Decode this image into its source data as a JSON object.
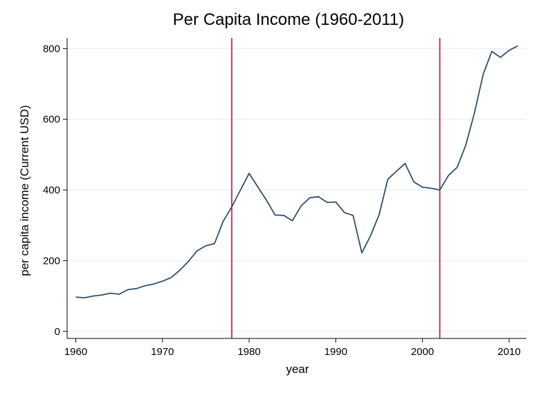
{
  "chart_data": {
    "type": "line",
    "title": "Per Capita Income (1960-2011)",
    "xlabel": "year",
    "ylabel": "per capita income (Current USD)",
    "xlim": [
      1959,
      2012
    ],
    "ylim": [
      -20,
      830
    ],
    "xticks": [
      1960,
      1970,
      1980,
      1990,
      2000,
      2010
    ],
    "yticks": [
      0,
      200,
      400,
      600,
      800
    ],
    "grid": true,
    "colors": {
      "line": "#2e4f6b",
      "vline": "#b2124a",
      "grid": "#e6ecef",
      "axis": "#000000"
    },
    "series": [
      {
        "x": [
          1960,
          1961,
          1962,
          1963,
          1964,
          1965,
          1966,
          1967,
          1968,
          1969,
          1970,
          1971,
          1972,
          1973,
          1974,
          1975,
          1976,
          1977,
          1978,
          1979,
          1980,
          1981,
          1982,
          1983,
          1984,
          1985,
          1986,
          1987,
          1988,
          1989,
          1990,
          1991,
          1992,
          1993,
          1994,
          1995,
          1996,
          1997,
          1998,
          1999,
          2000,
          2001,
          2002,
          2003,
          2004,
          2005,
          2006,
          2007,
          2008,
          2009,
          2010,
          2011
        ],
        "values": [
          97,
          95,
          100,
          103,
          108,
          105,
          118,
          121,
          129,
          134,
          142,
          152,
          173,
          198,
          228,
          242,
          248,
          311,
          352,
          400,
          447,
          409,
          371,
          329,
          328,
          313,
          355,
          378,
          381,
          365,
          366,
          336,
          328,
          222,
          270,
          330,
          430,
          453,
          475,
          423,
          408,
          405,
          400,
          441,
          464,
          527,
          618,
          727,
          792,
          775,
          795,
          808
        ]
      }
    ],
    "vlines": [
      1978,
      2002
    ]
  }
}
